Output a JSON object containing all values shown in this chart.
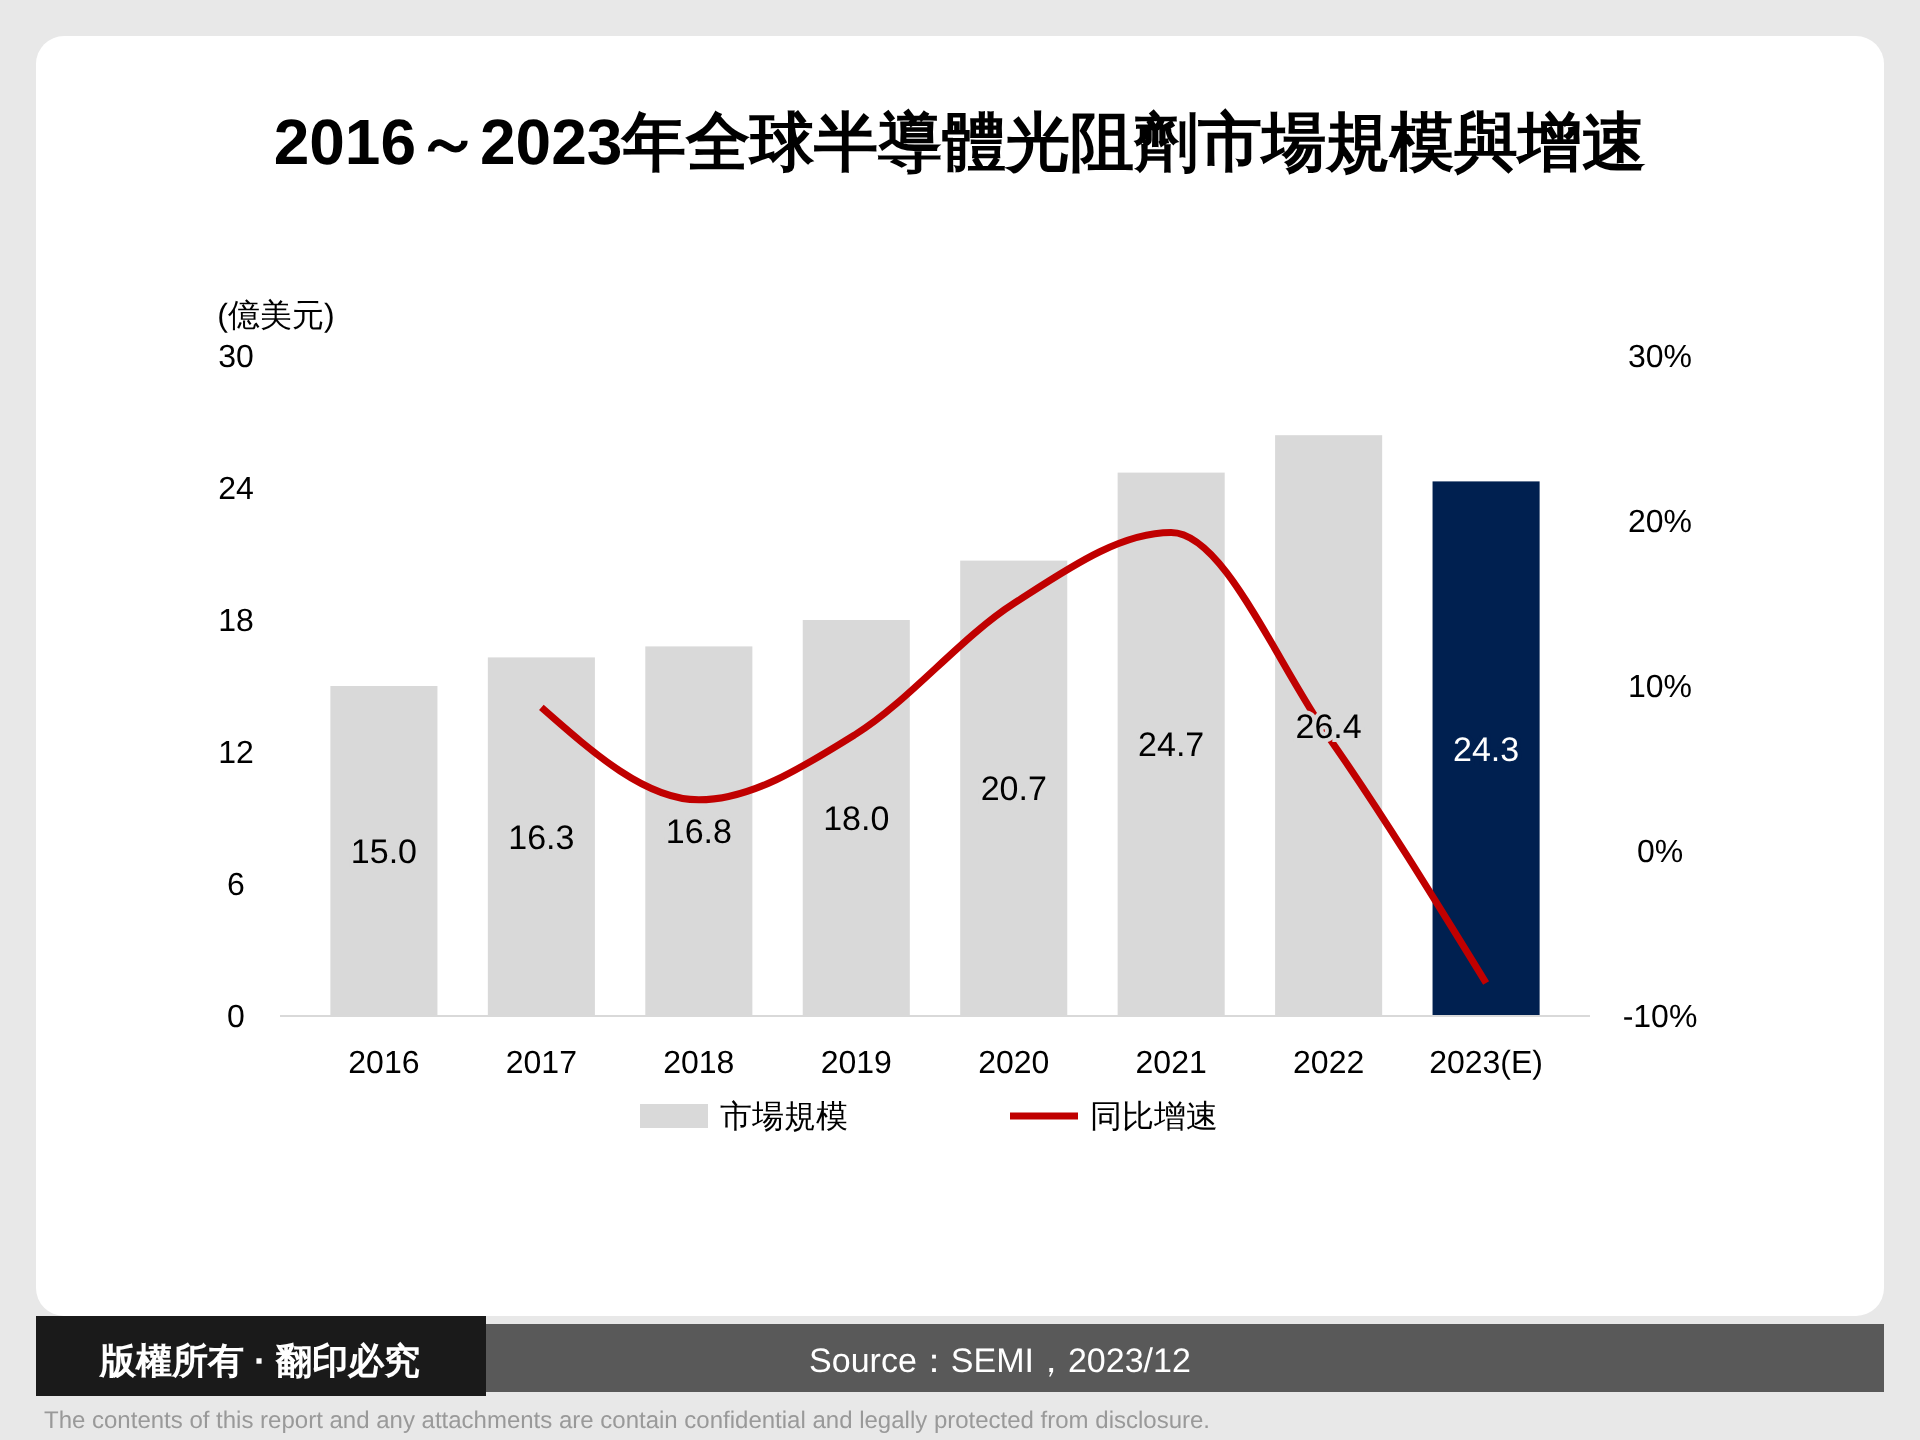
{
  "chart_data": {
    "type": "bar",
    "title": "2016～2023年全球半導體光阻劑市場規模與增速",
    "ylabel": "(億美元)",
    "categories": [
      "2016",
      "2017",
      "2018",
      "2019",
      "2020",
      "2021",
      "2022",
      "2023(E)"
    ],
    "series": [
      {
        "name": "市場規模",
        "color": "#d9d9d9",
        "colors": [
          "#d9d9d9",
          "#d9d9d9",
          "#d9d9d9",
          "#d9d9d9",
          "#d9d9d9",
          "#d9d9d9",
          "#d9d9d9",
          "#002050"
        ],
        "values": [
          15.0,
          16.3,
          16.8,
          18.0,
          20.7,
          24.7,
          26.4,
          24.3
        ],
        "value_labels": [
          "15.0",
          "16.3",
          "16.8",
          "18.0",
          "20.7",
          "24.7",
          "26.4",
          "24.3"
        ]
      },
      {
        "name": "同比增速",
        "type": "line",
        "axis": "y2",
        "color": "#c00000",
        "values": [
          null,
          8.7,
          3.1,
          7.1,
          15.0,
          19.3,
          6.9,
          -8.0
        ]
      }
    ],
    "ylim": [
      0,
      30
    ],
    "yticks": [
      0,
      6,
      12,
      18,
      24,
      30
    ],
    "y2lim": [
      -10,
      30
    ],
    "y2ticks": [
      {
        "value": -10,
        "label": "-10%"
      },
      {
        "value": 0,
        "label": "0%"
      },
      {
        "value": 10,
        "label": "10%"
      },
      {
        "value": 20,
        "label": "20%"
      },
      {
        "value": 30,
        "label": "30%"
      }
    ],
    "grid": false,
    "legend": "bottom",
    "marker": "none",
    "line_style": "solid",
    "annotations": [
      "版權所有 · 翻印必究",
      "Source：SEMI，2023/12",
      "The contents of this report and any attachments are contain confidential and legally protected from disclosure."
    ]
  }
}
